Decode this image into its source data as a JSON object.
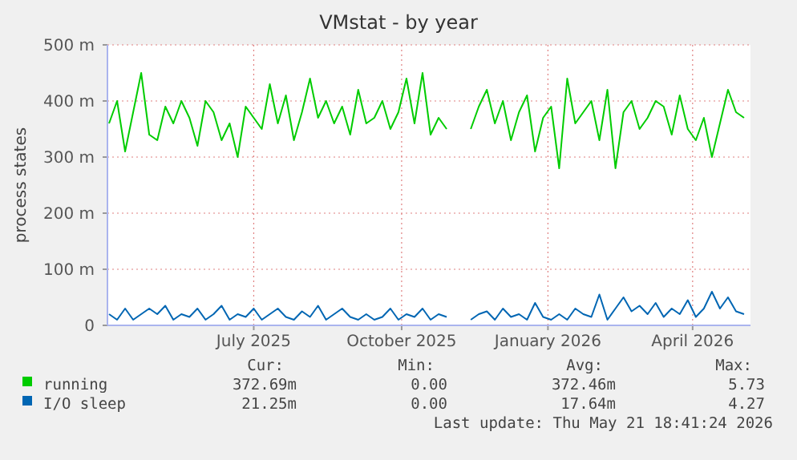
{
  "chart_data": {
    "type": "line",
    "title": "VMstat - by year",
    "ylabel": "process states",
    "x": [
      "2025-04-17",
      "2025-04-22",
      "2025-04-27",
      "2025-05-02",
      "2025-05-07",
      "2025-05-12",
      "2025-05-17",
      "2025-05-22",
      "2025-05-27",
      "2025-06-01",
      "2025-06-06",
      "2025-06-11",
      "2025-06-16",
      "2025-06-21",
      "2025-06-26",
      "2025-07-01",
      "2025-07-06",
      "2025-07-11",
      "2025-07-16",
      "2025-07-21",
      "2025-07-26",
      "2025-07-31",
      "2025-08-05",
      "2025-08-10",
      "2025-08-15",
      "2025-08-20",
      "2025-08-25",
      "2025-08-30",
      "2025-09-04",
      "2025-09-09",
      "2025-09-14",
      "2025-09-19",
      "2025-09-24",
      "2025-09-29",
      "2025-10-04",
      "2025-10-09",
      "2025-10-14",
      "2025-10-19",
      "2025-10-24",
      "2025-10-29",
      "2025-11-03",
      "2025-11-08",
      "2025-11-13",
      "2025-11-18",
      "2025-11-23",
      "2025-11-28",
      "2025-12-03",
      "2025-12-08",
      "2025-12-13",
      "2025-12-18",
      "2025-12-23",
      "2025-12-28",
      "2026-01-02",
      "2026-01-07",
      "2026-01-12",
      "2026-01-17",
      "2026-01-22",
      "2026-01-27",
      "2026-02-01",
      "2026-02-06",
      "2026-02-11",
      "2026-02-16",
      "2026-02-21",
      "2026-02-26",
      "2026-03-03",
      "2026-03-08",
      "2026-03-13",
      "2026-03-18",
      "2026-03-23",
      "2026-03-28",
      "2026-04-02",
      "2026-04-07",
      "2026-04-12",
      "2026-04-17",
      "2026-04-22",
      "2026-04-27",
      "2026-05-02",
      "2026-05-07",
      "2026-05-12",
      "2026-05-17"
    ],
    "series": [
      {
        "name": "running",
        "color": "#00cc00",
        "values": [
          360,
          400,
          310,
          380,
          450,
          340,
          330,
          390,
          360,
          400,
          370,
          320,
          400,
          380,
          330,
          360,
          300,
          390,
          370,
          350,
          430,
          360,
          410,
          330,
          380,
          440,
          370,
          400,
          360,
          390,
          340,
          420,
          360,
          370,
          400,
          350,
          380,
          440,
          360,
          450,
          340,
          370,
          350,
          null,
          null,
          350,
          390,
          420,
          360,
          400,
          330,
          380,
          410,
          310,
          370,
          390,
          280,
          440,
          360,
          380,
          400,
          330,
          420,
          280,
          380,
          400,
          350,
          370,
          400,
          390,
          340,
          410,
          350,
          330,
          370,
          300,
          360,
          420,
          380,
          370
        ]
      },
      {
        "name": "I/O sleep",
        "color": "#0066b3",
        "values": [
          20,
          10,
          30,
          10,
          20,
          30,
          20,
          35,
          10,
          20,
          15,
          30,
          10,
          20,
          35,
          10,
          20,
          15,
          30,
          10,
          20,
          30,
          15,
          10,
          25,
          15,
          35,
          10,
          20,
          30,
          15,
          10,
          20,
          10,
          15,
          30,
          10,
          20,
          15,
          30,
          10,
          20,
          15,
          null,
          null,
          10,
          20,
          25,
          10,
          30,
          15,
          20,
          10,
          40,
          15,
          10,
          20,
          10,
          30,
          20,
          15,
          55,
          10,
          30,
          50,
          25,
          35,
          20,
          40,
          15,
          30,
          20,
          45,
          15,
          30,
          60,
          30,
          50,
          25,
          20
        ]
      }
    ],
    "xlim": [
      "2025-04-16",
      "2026-05-21"
    ],
    "xticks": [
      {
        "value": "2025-07-16",
        "label": "July 2025"
      },
      {
        "value": "2025-10-16",
        "label": "October 2025"
      },
      {
        "value": "2026-01-15",
        "label": "January 2026"
      },
      {
        "value": "2026-04-15",
        "label": "April 2026"
      }
    ],
    "ylim": [
      0,
      500
    ],
    "yticks": [
      {
        "value": 0,
        "label": "0"
      },
      {
        "value": 100,
        "label": "100 m"
      },
      {
        "value": 200,
        "label": "200 m"
      },
      {
        "value": 300,
        "label": "300 m"
      },
      {
        "value": 400,
        "label": "400 m"
      },
      {
        "value": 500,
        "label": "500 m"
      }
    ],
    "grid": true,
    "legend": "bottom",
    "annotations": [
      "Cur:",
      "Min:",
      "Avg:",
      "Max:",
      "372.69m",
      "0.00",
      "372.46m",
      "5.73",
      "21.25m",
      "0.00",
      "17.64m",
      "4.27",
      "Last update: Thu May 21 18:41:24 2026"
    ]
  }
}
